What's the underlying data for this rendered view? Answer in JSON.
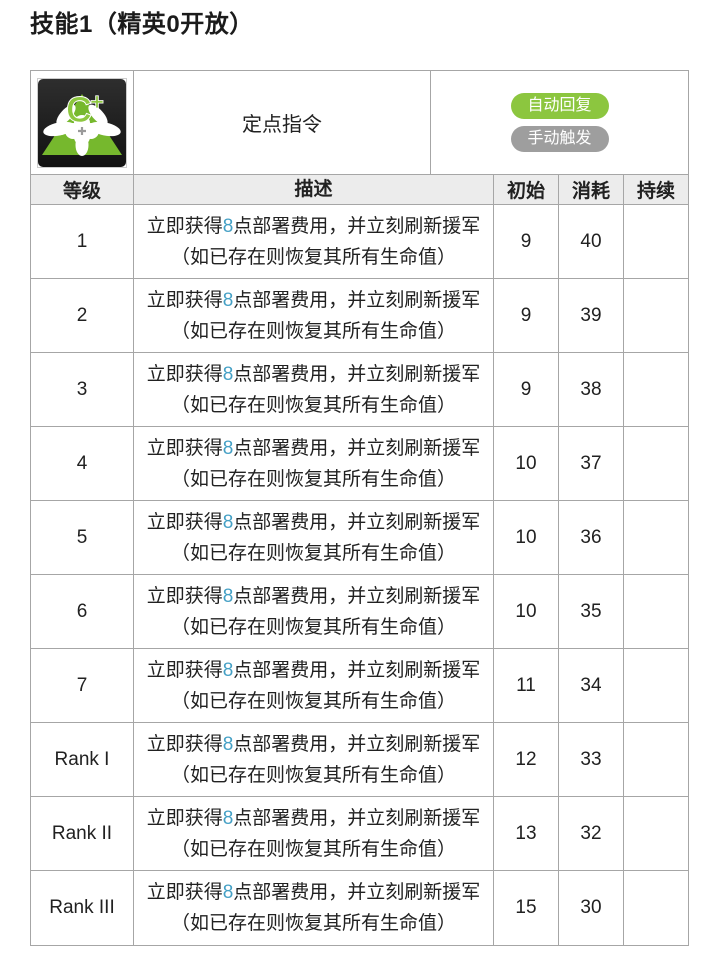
{
  "page": {
    "title": "技能1（精英0开放）"
  },
  "skill": {
    "name": "定点指令",
    "icon": "cost-plus-support-call-icon",
    "icon_glyph": "C+",
    "badges": [
      {
        "label": "自动回复",
        "color": "#8cc63f"
      },
      {
        "label": "手动触发",
        "color": "#9e9e9e"
      }
    ]
  },
  "table": {
    "headers": [
      "等级",
      "描述",
      "初始",
      "消耗",
      "持续"
    ],
    "description": {
      "line1_pre": "立即获得",
      "line1_value": "8",
      "line1_post": "点部署费用，并立刻刷新援军",
      "line2": "（如已存在则恢复其所有生命值）"
    },
    "rows": [
      {
        "level": "1",
        "initial": "9",
        "cost": "40",
        "duration": ""
      },
      {
        "level": "2",
        "initial": "9",
        "cost": "39",
        "duration": ""
      },
      {
        "level": "3",
        "initial": "9",
        "cost": "38",
        "duration": ""
      },
      {
        "level": "4",
        "initial": "10",
        "cost": "37",
        "duration": ""
      },
      {
        "level": "5",
        "initial": "10",
        "cost": "36",
        "duration": ""
      },
      {
        "level": "6",
        "initial": "10",
        "cost": "35",
        "duration": ""
      },
      {
        "level": "7",
        "initial": "11",
        "cost": "34",
        "duration": ""
      },
      {
        "level": "Rank I",
        "initial": "12",
        "cost": "33",
        "duration": ""
      },
      {
        "level": "Rank II",
        "initial": "13",
        "cost": "32",
        "duration": ""
      },
      {
        "level": "Rank III",
        "initial": "15",
        "cost": "30",
        "duration": ""
      }
    ]
  },
  "colors": {
    "highlight_blue": "#45a0c5",
    "badge_green": "#8cc63f",
    "badge_gray": "#9e9e9e",
    "header_bg": "#ececec",
    "border": "#a6a6a6",
    "icon_green": "#76b82d"
  }
}
